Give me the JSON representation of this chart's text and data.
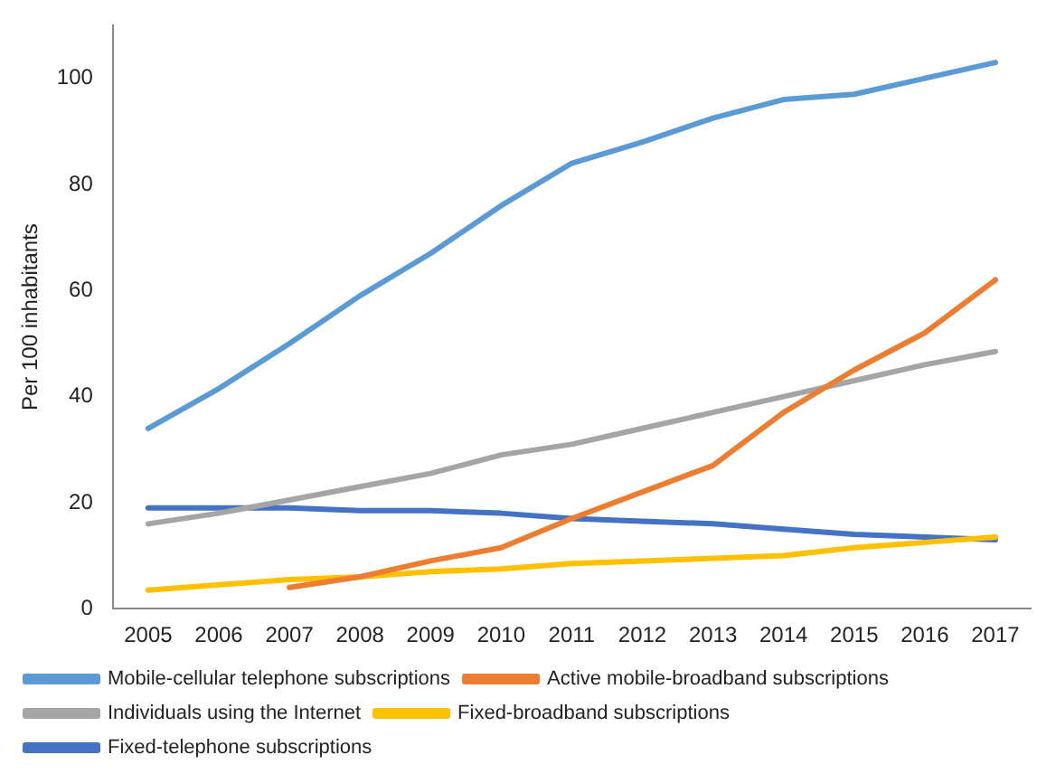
{
  "chart_data": {
    "type": "line",
    "ylabel": "Per 100 inhabitants",
    "categories": [
      "2005",
      "2006",
      "2007",
      "2008",
      "2009",
      "2010",
      "2011",
      "2012",
      "2013",
      "2014",
      "2015",
      "2016",
      "2017"
    ],
    "ylim": [
      0,
      110
    ],
    "yticks": [
      0,
      20,
      40,
      60,
      80,
      100
    ],
    "grid": false,
    "legend": "bottom",
    "marker": "none",
    "line_style": "solid",
    "series": [
      {
        "name": "Mobile-cellular telephone subscriptions",
        "color": "#5b9bd5",
        "values": [
          34,
          41.5,
          50,
          59,
          67,
          76,
          84,
          88,
          92.5,
          96,
          97,
          100,
          103
        ]
      },
      {
        "name": "Active mobile-broadband subscriptions",
        "color": "#ed7d31",
        "values": [
          null,
          null,
          4,
          6,
          9,
          11.5,
          17,
          22,
          27,
          37,
          45,
          52,
          62
        ]
      },
      {
        "name": "Individuals using the Internet",
        "color": "#a5a5a5",
        "values": [
          16,
          18,
          20.5,
          23,
          25.5,
          29,
          31,
          34,
          37,
          40,
          43,
          46,
          48.5
        ]
      },
      {
        "name": "Fixed-broadband subscriptions",
        "color": "#ffc000",
        "values": [
          3.5,
          4.5,
          5.5,
          6,
          7,
          7.5,
          8.5,
          9,
          9.5,
          10,
          11.5,
          12.5,
          13.5
        ]
      },
      {
        "name": "Fixed-telephone subscriptions",
        "color": "#4472c4",
        "values": [
          19,
          19,
          19,
          18.5,
          18.5,
          18,
          17,
          16.5,
          16,
          15,
          14,
          13.5,
          13
        ]
      }
    ]
  }
}
